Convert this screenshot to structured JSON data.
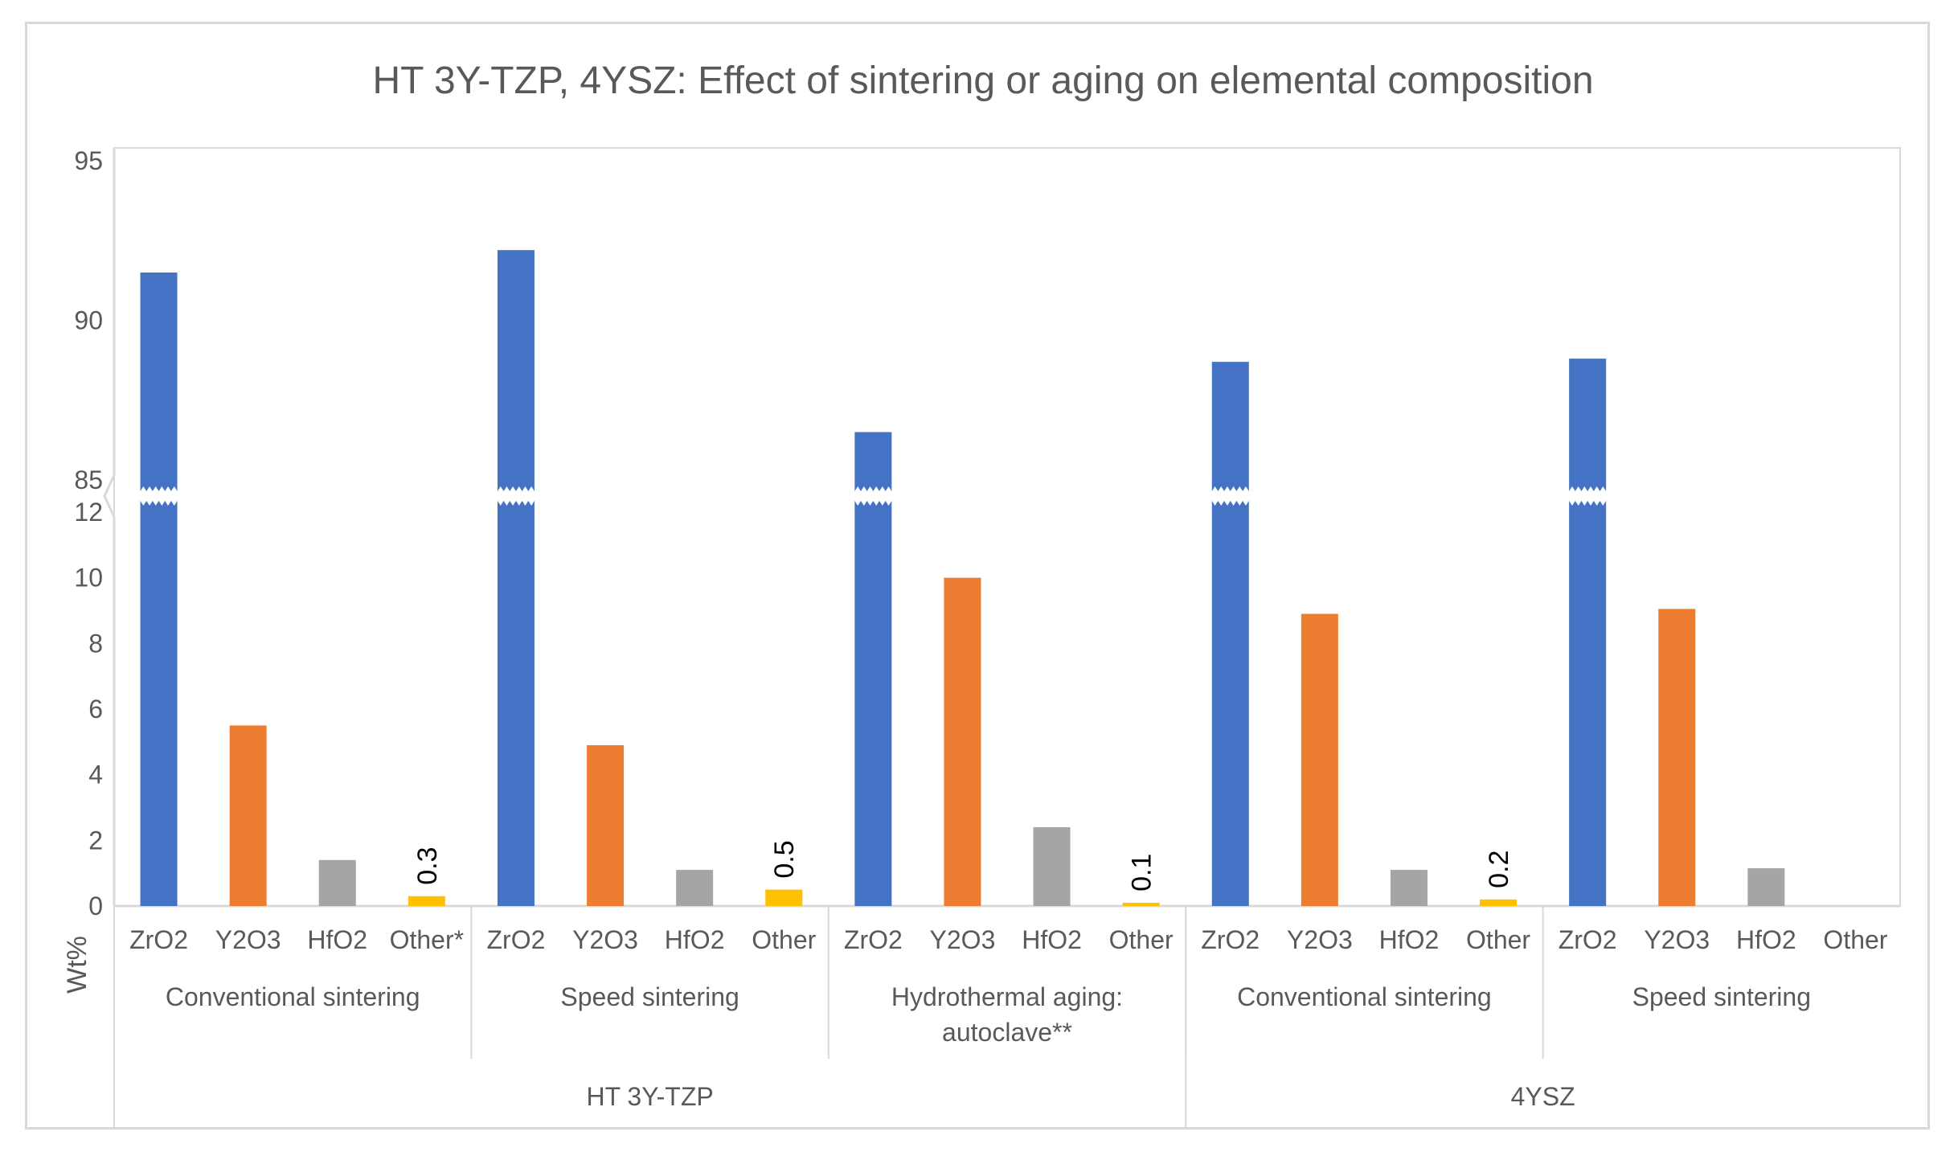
{
  "chart_data": {
    "type": "bar",
    "title": "HT 3Y-TZP, 4YSZ: Effect of sintering or aging on elemental composition",
    "ylabel": "Wt%",
    "xlabel": "",
    "broken_axis": true,
    "y_segments": [
      {
        "name": "lower",
        "ylim": [
          0,
          12
        ],
        "ticks": [
          0,
          2,
          4,
          6,
          8,
          10,
          12
        ]
      },
      {
        "name": "upper",
        "ylim": [
          85,
          95
        ],
        "ticks": [
          85,
          90,
          95
        ]
      }
    ],
    "grid": false,
    "colors": {
      "ZrO2": "#4472c4",
      "Y2O3": "#ed7d31",
      "HfO2": "#a5a5a5",
      "Other": "#ffc000",
      "axis": "#d9d9d9",
      "text": "#595959"
    },
    "groups": [
      {
        "name": "HT 3Y-TZP",
        "subgroups": [
          {
            "name": "Conventional sintering",
            "bars": [
              {
                "category": "ZrO2",
                "series": "ZrO2",
                "value": 91.5
              },
              {
                "category": "Y2O3",
                "series": "Y2O3",
                "value": 5.5
              },
              {
                "category": "HfO2",
                "series": "HfO2",
                "value": 1.4
              },
              {
                "category": "Other*",
                "series": "Other",
                "value": 0.3,
                "label": "0.3"
              }
            ]
          },
          {
            "name": "Speed sintering",
            "bars": [
              {
                "category": "ZrO2",
                "series": "ZrO2",
                "value": 92.2
              },
              {
                "category": "Y2O3",
                "series": "Y2O3",
                "value": 4.9
              },
              {
                "category": "HfO2",
                "series": "HfO2",
                "value": 1.1
              },
              {
                "category": "Other",
                "series": "Other",
                "value": 0.5,
                "label": "0.5"
              }
            ]
          },
          {
            "name": "Hydrothermal aging: autoclave**",
            "bars": [
              {
                "category": "ZrO2",
                "series": "ZrO2",
                "value": 86.5
              },
              {
                "category": "Y2O3",
                "series": "Y2O3",
                "value": 10.0
              },
              {
                "category": "HfO2",
                "series": "HfO2",
                "value": 2.4
              },
              {
                "category": "Other",
                "series": "Other",
                "value": 0.1,
                "label": "0.1"
              }
            ]
          }
        ]
      },
      {
        "name": "4YSZ",
        "subgroups": [
          {
            "name": "Conventional sintering",
            "bars": [
              {
                "category": "ZrO2",
                "series": "ZrO2",
                "value": 88.7
              },
              {
                "category": "Y2O3",
                "series": "Y2O3",
                "value": 8.9
              },
              {
                "category": "HfO2",
                "series": "HfO2",
                "value": 1.1
              },
              {
                "category": "Other",
                "series": "Other",
                "value": 0.2,
                "label": "0.2"
              }
            ]
          },
          {
            "name": "Speed sintering",
            "bars": [
              {
                "category": "ZrO2",
                "series": "ZrO2",
                "value": 88.8
              },
              {
                "category": "Y2O3",
                "series": "Y2O3",
                "value": 9.05
              },
              {
                "category": "HfO2",
                "series": "HfO2",
                "value": 1.15
              },
              {
                "category": "Other",
                "series": "Other",
                "value": 0
              }
            ]
          }
        ]
      }
    ]
  }
}
